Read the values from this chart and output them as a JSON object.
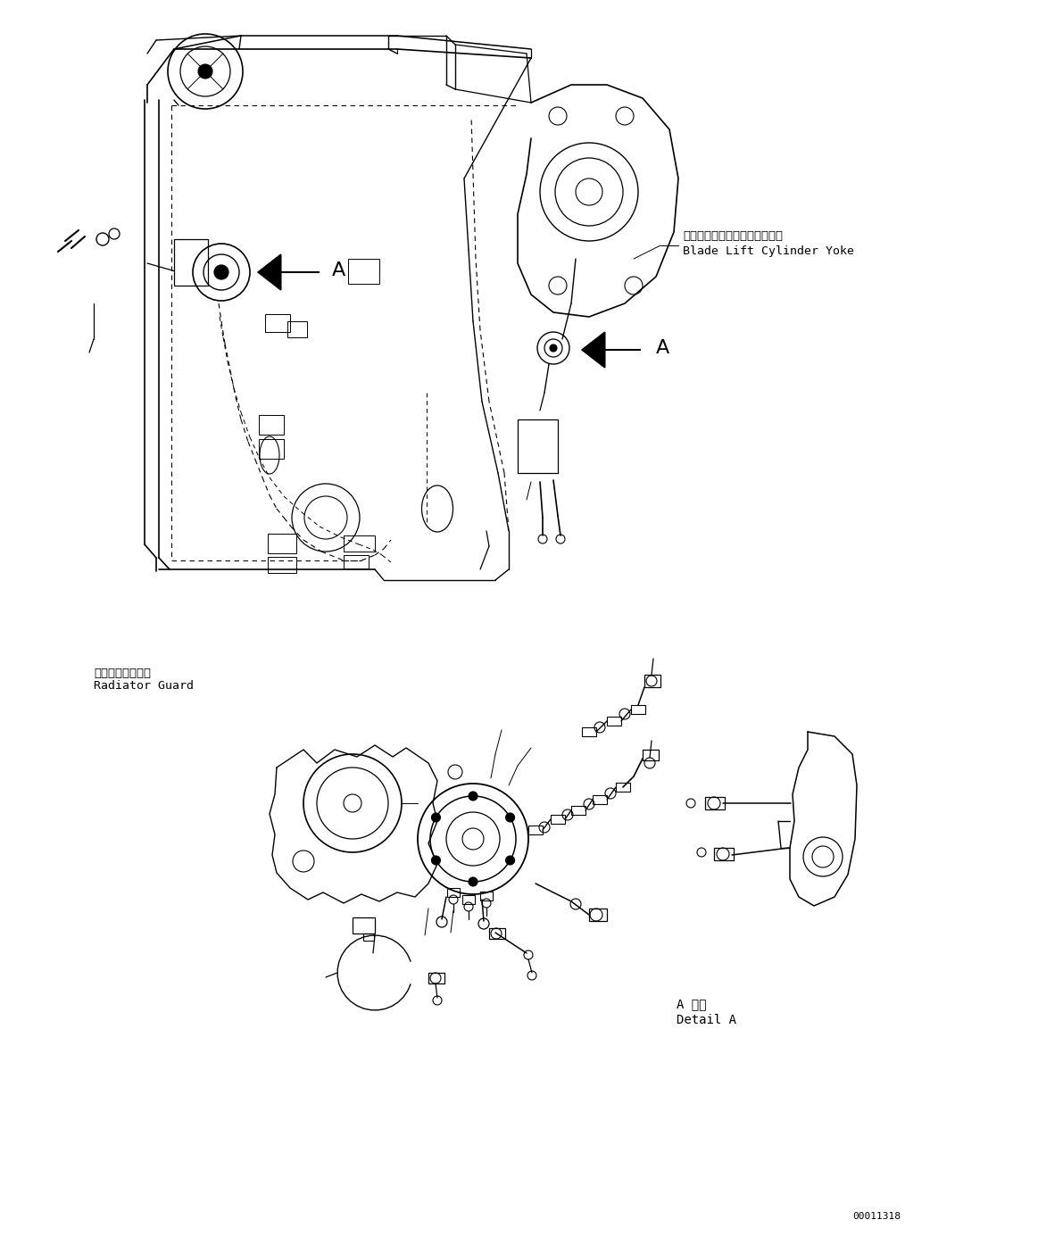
{
  "bg_color": "#ffffff",
  "fig_width": 11.63,
  "fig_height": 14.04,
  "dpi": 100,
  "text_blade_jp": "ブレードリフトシリンダヨーク",
  "text_blade_en": "Blade Lift Cylinder Yoke",
  "text_radiator_jp": "ラジエータガード",
  "text_radiator_en": "Radiator Guard",
  "text_detail_jp": "A 詳細",
  "text_detail_en": "Detail A",
  "text_id": "00011318",
  "lc": "#000000"
}
